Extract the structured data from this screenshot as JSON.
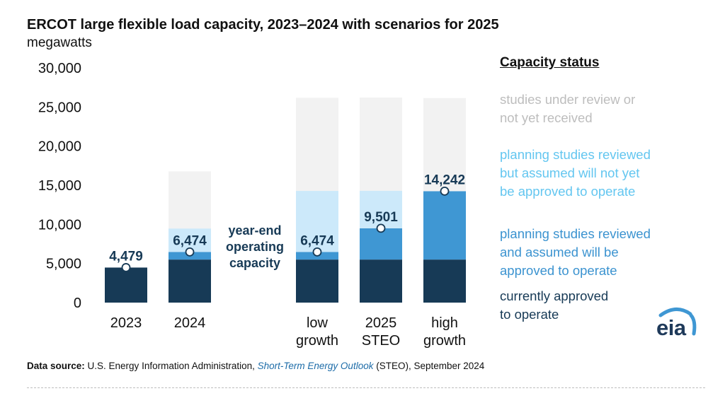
{
  "chart_data": {
    "type": "bar",
    "stacked": true,
    "title": "ERCOT large flexible load capacity, 2023–2024 with scenarios for 2025",
    "units": "megawatts",
    "xlabel": "",
    "ylabel": "megawatts",
    "ylim": [
      0,
      30000
    ],
    "yticks": [
      0,
      5000,
      10000,
      15000,
      20000,
      25000,
      30000
    ],
    "ytick_labels": [
      "0",
      "5,000",
      "10,000",
      "15,000",
      "20,000",
      "25,000",
      "30,000"
    ],
    "grid": false,
    "legend_position": "right",
    "categories": [
      [
        "2023"
      ],
      [
        "2024"
      ],
      [
        "low",
        "growth"
      ],
      [
        "2025",
        "STEO"
      ],
      [
        "high",
        "growth"
      ]
    ],
    "series": [
      {
        "name": "currently approved to operate",
        "color": "#173a56",
        "values": [
          4479,
          5500,
          5500,
          5500,
          5500
        ]
      },
      {
        "name": "planning studies reviewed and assumed will be approved to operate",
        "color": "#3f97d3",
        "values": [
          0,
          974,
          974,
          4001,
          8742
        ]
      },
      {
        "name": "planning studies reviewed but assumed will not yet be approved to operate",
        "color": "#cce9fa",
        "values": [
          0,
          3000,
          7800,
          4800,
          0
        ]
      },
      {
        "name": "studies under review or not yet received",
        "color": "#f2f2f2",
        "values": [
          0,
          7300,
          11900,
          11900,
          11900
        ]
      }
    ],
    "year_end_operating_capacity": {
      "values": [
        4479,
        6474,
        6474,
        9501,
        14242
      ],
      "labels": [
        "4,479",
        "6,474",
        "6,474",
        "9,501",
        "14,242"
      ]
    },
    "annotations": [
      {
        "text_lines": [
          "year-end",
          "operating",
          "capacity"
        ]
      }
    ]
  },
  "legend": {
    "title": "Capacity status",
    "items": [
      {
        "lines": [
          "studies under review or",
          "not yet received"
        ],
        "color": "#bdbdbd"
      },
      {
        "lines": [
          "planning studies reviewed",
          "but assumed will not yet",
          "be approved to operate"
        ],
        "color": "#63c6f0"
      },
      {
        "lines": [
          "planning studies reviewed",
          "and assumed will be",
          "approved to operate"
        ],
        "color": "#3b93d0"
      },
      {
        "lines": [
          "currently approved",
          "to operate"
        ],
        "color": "#173a56"
      }
    ]
  },
  "source": {
    "label": "Data source:",
    "text_before": " U.S. Energy Information Administration, ",
    "link_text": "Short-Term Energy Outlook",
    "text_after": " (STEO), September 2024"
  },
  "logo": {
    "text": "eia",
    "icon": "eia-logo-icon"
  }
}
